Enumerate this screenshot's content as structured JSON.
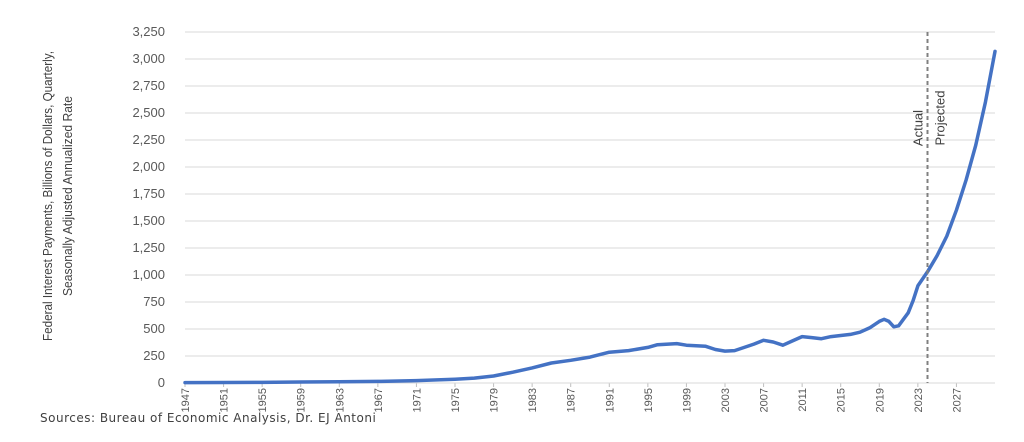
{
  "chart_data": {
    "type": "line",
    "ylabel_lines": [
      "Federal Interest Payments, Billions of Dollars, Quarterly,",
      "Seasonally Adjusted Annualized Rate"
    ],
    "ylim": [
      0,
      3250
    ],
    "xlim": [
      1947,
      2031
    ],
    "y_ticks": [
      {
        "value": 0,
        "label": "0"
      },
      {
        "value": 250,
        "label": "250"
      },
      {
        "value": 500,
        "label": "500"
      },
      {
        "value": 750,
        "label": "750"
      },
      {
        "value": 1000,
        "label": "1,000"
      },
      {
        "value": 1250,
        "label": "1,250"
      },
      {
        "value": 1500,
        "label": "1,500"
      },
      {
        "value": 1750,
        "label": "1,750"
      },
      {
        "value": 2000,
        "label": "2,000"
      },
      {
        "value": 2250,
        "label": "2,250"
      },
      {
        "value": 2500,
        "label": "2,500"
      },
      {
        "value": 2750,
        "label": "2,750"
      },
      {
        "value": 3000,
        "label": "3,000"
      },
      {
        "value": 3250,
        "label": "3,250"
      }
    ],
    "x_ticks": [
      {
        "value": 1947,
        "label": "1947"
      },
      {
        "value": 1951,
        "label": "1951"
      },
      {
        "value": 1955,
        "label": "1955"
      },
      {
        "value": 1959,
        "label": "1959"
      },
      {
        "value": 1963,
        "label": "1963"
      },
      {
        "value": 1967,
        "label": "1967"
      },
      {
        "value": 1971,
        "label": "1971"
      },
      {
        "value": 1975,
        "label": "1975"
      },
      {
        "value": 1979,
        "label": "1979"
      },
      {
        "value": 1983,
        "label": "1983"
      },
      {
        "value": 1987,
        "label": "1987"
      },
      {
        "value": 1991,
        "label": "1991"
      },
      {
        "value": 1995,
        "label": "1995"
      },
      {
        "value": 1999,
        "label": "1999"
      },
      {
        "value": 2003,
        "label": "2003"
      },
      {
        "value": 2007,
        "label": "2007"
      },
      {
        "value": 2011,
        "label": "2011"
      },
      {
        "value": 2015,
        "label": "2015"
      },
      {
        "value": 2019,
        "label": "2019"
      },
      {
        "value": 2023,
        "label": "2023"
      },
      {
        "value": 2027,
        "label": "2027"
      }
    ],
    "grid": "horizontal",
    "series": [
      {
        "color": "#4472C4",
        "points": [
          [
            1947,
            4
          ],
          [
            1951,
            5
          ],
          [
            1955,
            6
          ],
          [
            1959,
            9
          ],
          [
            1963,
            11
          ],
          [
            1967,
            15
          ],
          [
            1971,
            22
          ],
          [
            1975,
            35
          ],
          [
            1977,
            45
          ],
          [
            1979,
            65
          ],
          [
            1981,
            100
          ],
          [
            1983,
            140
          ],
          [
            1985,
            185
          ],
          [
            1987,
            210
          ],
          [
            1989,
            240
          ],
          [
            1991,
            285
          ],
          [
            1993,
            300
          ],
          [
            1995,
            330
          ],
          [
            1996,
            355
          ],
          [
            1998,
            365
          ],
          [
            1999,
            350
          ],
          [
            2001,
            340
          ],
          [
            2002,
            310
          ],
          [
            2003,
            295
          ],
          [
            2004,
            300
          ],
          [
            2005,
            330
          ],
          [
            2006,
            360
          ],
          [
            2007,
            395
          ],
          [
            2008,
            380
          ],
          [
            2009,
            350
          ],
          [
            2010,
            390
          ],
          [
            2011,
            430
          ],
          [
            2012,
            420
          ],
          [
            2013,
            410
          ],
          [
            2014,
            430
          ],
          [
            2015,
            440
          ],
          [
            2016,
            450
          ],
          [
            2017,
            470
          ],
          [
            2018,
            510
          ],
          [
            2019,
            570
          ],
          [
            2019.5,
            590
          ],
          [
            2020,
            570
          ],
          [
            2020.5,
            520
          ],
          [
            2021,
            530
          ],
          [
            2021.5,
            590
          ],
          [
            2022,
            650
          ],
          [
            2022.5,
            760
          ],
          [
            2023,
            900
          ],
          [
            2024,
            1030
          ],
          [
            2025,
            1180
          ],
          [
            2026,
            1360
          ],
          [
            2027,
            1600
          ],
          [
            2028,
            1880
          ],
          [
            2029,
            2200
          ],
          [
            2030,
            2600
          ],
          [
            2031,
            3070
          ]
        ]
      }
    ],
    "divider": {
      "x": 2024,
      "style": "dashed",
      "labels": [
        "Actual",
        "Projected"
      ]
    },
    "source": "Sources: Bureau of Economic Analysis, Dr. EJ Antoni"
  }
}
